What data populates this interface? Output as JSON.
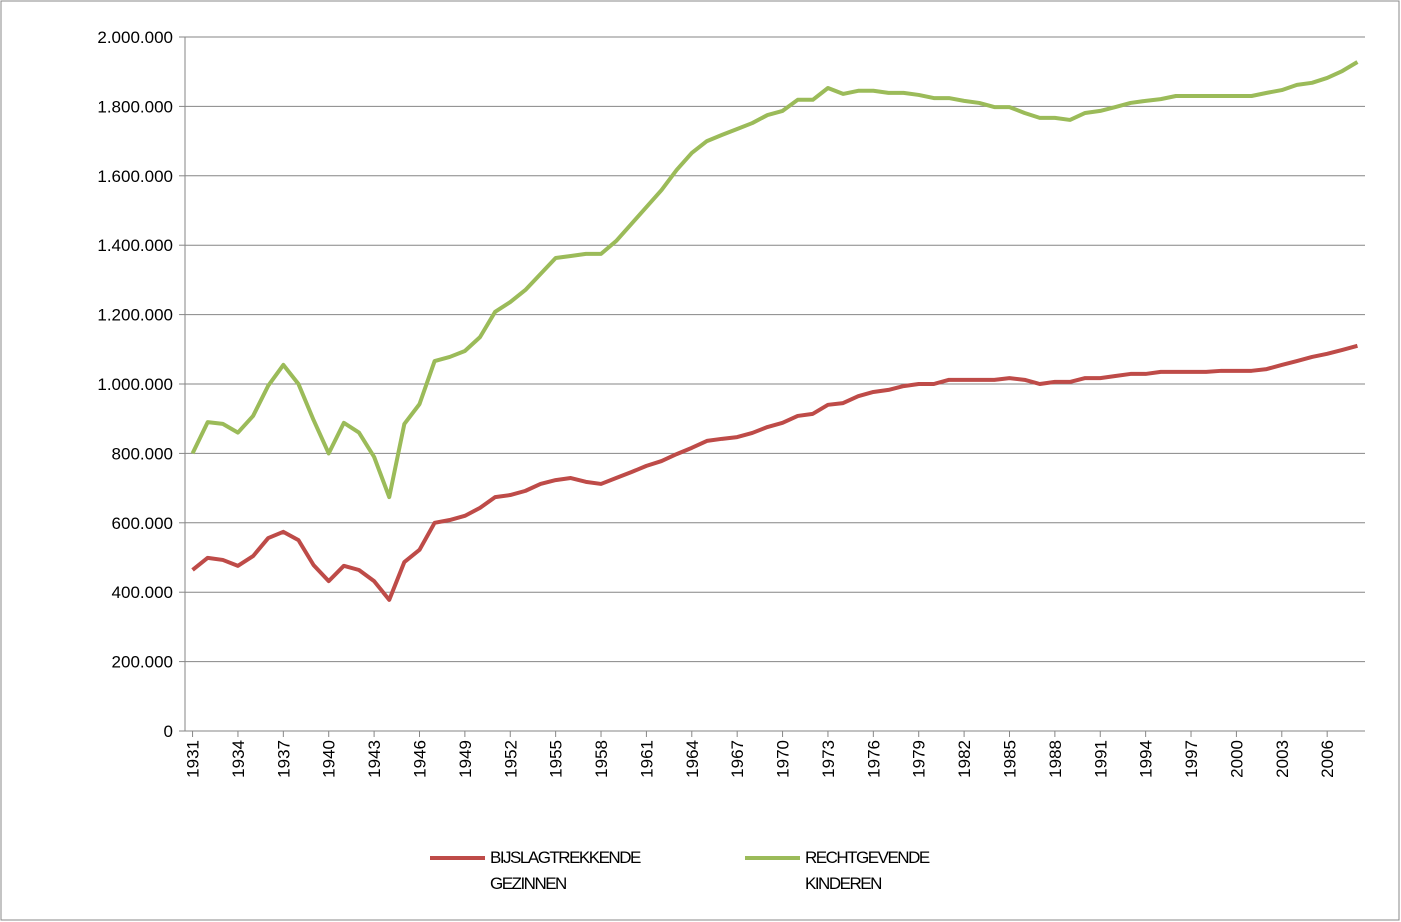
{
  "chart_data": {
    "type": "line",
    "x": [
      1931,
      1932,
      1933,
      1934,
      1935,
      1936,
      1937,
      1938,
      1939,
      1940,
      1941,
      1942,
      1943,
      1944,
      1945,
      1946,
      1947,
      1948,
      1949,
      1950,
      1951,
      1952,
      1953,
      1954,
      1955,
      1956,
      1957,
      1958,
      1959,
      1960,
      1961,
      1962,
      1963,
      1964,
      1965,
      1966,
      1967,
      1968,
      1969,
      1970,
      1971,
      1972,
      1973,
      1974,
      1975,
      1976,
      1977,
      1978,
      1979,
      1980,
      1981,
      1982,
      1983,
      1984,
      1985,
      1986,
      1987,
      1988,
      1989,
      1990,
      1991,
      1992,
      1993,
      1994,
      1995,
      1996,
      1997,
      1998,
      1999,
      2000,
      2001,
      2002,
      2003,
      2004,
      2005,
      2006,
      2007,
      2008
    ],
    "xlim": [
      1930.5,
      2008.5
    ],
    "xticks": [
      1931,
      1934,
      1937,
      1940,
      1943,
      1946,
      1949,
      1952,
      1955,
      1958,
      1961,
      1964,
      1967,
      1970,
      1973,
      1976,
      1979,
      1982,
      1985,
      1988,
      1991,
      1994,
      1997,
      2000,
      2003,
      2006
    ],
    "ylim": [
      0,
      2000000
    ],
    "yticks": [
      0,
      {
        "value": 200000,
        "label": "200.000"
      },
      {
        "value": 400000,
        "label": "400.000"
      },
      {
        "value": 600000,
        "label": "600.000"
      },
      {
        "value": 800000,
        "label": "800.000"
      },
      {
        "value": 1000000,
        "label": "1.000.000"
      },
      {
        "value": 1200000,
        "label": "1.200.000"
      },
      {
        "value": 1400000,
        "label": "1.400.000"
      },
      {
        "value": 1600000,
        "label": "1.600.000"
      },
      {
        "value": 1800000,
        "label": "1.800.000"
      },
      {
        "value": 2000000,
        "label": "2.000.000"
      }
    ],
    "grid": true,
    "legend": "bottom",
    "series": [
      {
        "name": "BIJSLAGTREKKENDE GEZINNEN",
        "color": "#be4b48",
        "values": [
          464000,
          499000,
          493000,
          476000,
          504000,
          556000,
          574000,
          550000,
          478000,
          432000,
          476000,
          464000,
          432000,
          378000,
          487000,
          522000,
          600000,
          608000,
          620000,
          643000,
          674000,
          680000,
          692000,
          712000,
          723000,
          729000,
          718000,
          712000,
          729000,
          746000,
          764000,
          778000,
          798000,
          816000,
          836000,
          842000,
          847000,
          859000,
          876000,
          888000,
          908000,
          914000,
          940000,
          945000,
          965000,
          977000,
          983000,
          994000,
          1000000,
          1000000,
          1012000,
          1012000,
          1012000,
          1012000,
          1017000,
          1012000,
          1000000,
          1006000,
          1006000,
          1017000,
          1017000,
          1023000,
          1029000,
          1029000,
          1035000,
          1035000,
          1035000,
          1035000,
          1038000,
          1038000,
          1038000,
          1043000,
          1055000,
          1066000,
          1078000,
          1087000,
          1098000,
          1110000
        ]
      },
      {
        "name": "RECHTGEVENDE KINDEREN",
        "color": "#9bbb59",
        "values": [
          800000,
          890000,
          885000,
          860000,
          908000,
          995000,
          1055000,
          1000000,
          896000,
          800000,
          888000,
          860000,
          790000,
          674000,
          885000,
          942000,
          1066000,
          1078000,
          1095000,
          1135000,
          1208000,
          1236000,
          1271000,
          1317000,
          1363000,
          1369000,
          1375000,
          1375000,
          1412000,
          1461000,
          1510000,
          1559000,
          1617000,
          1666000,
          1700000,
          1718000,
          1735000,
          1752000,
          1775000,
          1787000,
          1819000,
          1819000,
          1853000,
          1836000,
          1845000,
          1845000,
          1839000,
          1839000,
          1833000,
          1824000,
          1824000,
          1816000,
          1810000,
          1798000,
          1798000,
          1781000,
          1767000,
          1767000,
          1761000,
          1781000,
          1787000,
          1798000,
          1810000,
          1816000,
          1821000,
          1830000,
          1830000,
          1830000,
          1830000,
          1830000,
          1830000,
          1839000,
          1847000,
          1862000,
          1868000,
          1882000,
          1902000,
          1928000
        ]
      }
    ]
  }
}
